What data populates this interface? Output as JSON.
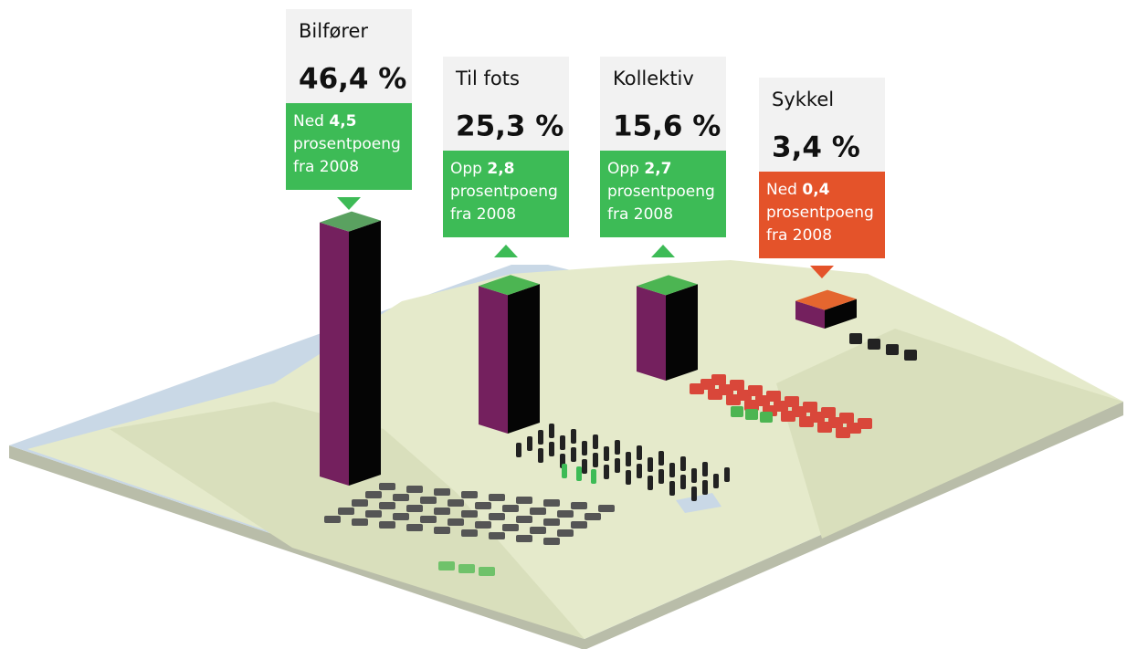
{
  "chart_data": {
    "type": "bar",
    "categories": [
      "Bilfører",
      "Til fots",
      "Kollektiv",
      "Sykkel"
    ],
    "values": [
      46.4,
      25.3,
      15.6,
      3.4
    ],
    "value_labels": [
      "46,4 %",
      "25,3 %",
      "15,6 %",
      "3,4 %"
    ],
    "change_directions": [
      "Ned",
      "Opp",
      "Opp",
      "Ned"
    ],
    "change_values": [
      4.5,
      2.8,
      2.7,
      0.4
    ],
    "change_value_labels": [
      "4,5",
      "2,8",
      "2,7",
      "0,4"
    ],
    "change_unit": "prosentpoeng",
    "change_since": "fra 2008",
    "change_colors": [
      "#3dbb56",
      "#3dbb56",
      "#3dbb56",
      "#e4532a"
    ],
    "color": "#74205e",
    "top_colors": [
      "#5aa160",
      "#4cb552",
      "#4cb552",
      "#e4662f"
    ]
  }
}
